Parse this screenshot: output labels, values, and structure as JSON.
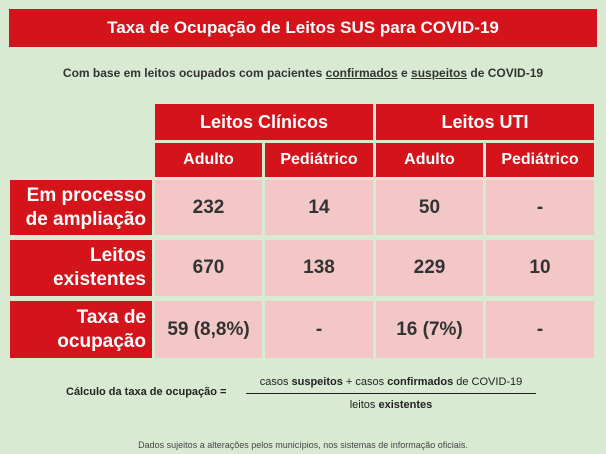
{
  "title": "Taxa de Ocupação de Leitos SUS para COVID-19",
  "subtitle": {
    "prefix": "Com base em leitos ocupados com pacientes ",
    "confirmados": "confirmados",
    "mid": " e ",
    "suspeitos": "suspeitos",
    "suffix": " de COVID-19"
  },
  "table": {
    "group_headers": [
      "Leitos Clínicos",
      "Leitos UTI"
    ],
    "sub_headers": [
      "Adulto",
      "Pediátrico",
      "Adulto",
      "Pediátrico"
    ],
    "rows": [
      {
        "label_line1": "Em processo",
        "label_line2": "de ampliação",
        "values": [
          "232",
          "14",
          "50",
          "-"
        ]
      },
      {
        "label_line1": "Leitos",
        "label_line2": "existentes",
        "values": [
          "670",
          "138",
          "229",
          "10"
        ]
      },
      {
        "label_line1": "Taxa de",
        "label_line2": "ocupação",
        "values": [
          "59 (8,8%)",
          "-",
          "16 (7%)",
          "-"
        ]
      }
    ]
  },
  "formula": {
    "label": "Cálculo da taxa de ocupação =",
    "num_a": "casos ",
    "num_b": "suspeitos",
    "num_c": " + casos ",
    "num_d": "confirmados",
    "num_e": " de COVID-19",
    "den_a": "leitos ",
    "den_b": "existentes"
  },
  "note": "Dados sujeitos a alterações pelos municípios, nos sistemas de informação oficiais.",
  "colors": {
    "red": "#d4141a",
    "pink": "#f4c7c7",
    "background": "#d9ead3"
  }
}
